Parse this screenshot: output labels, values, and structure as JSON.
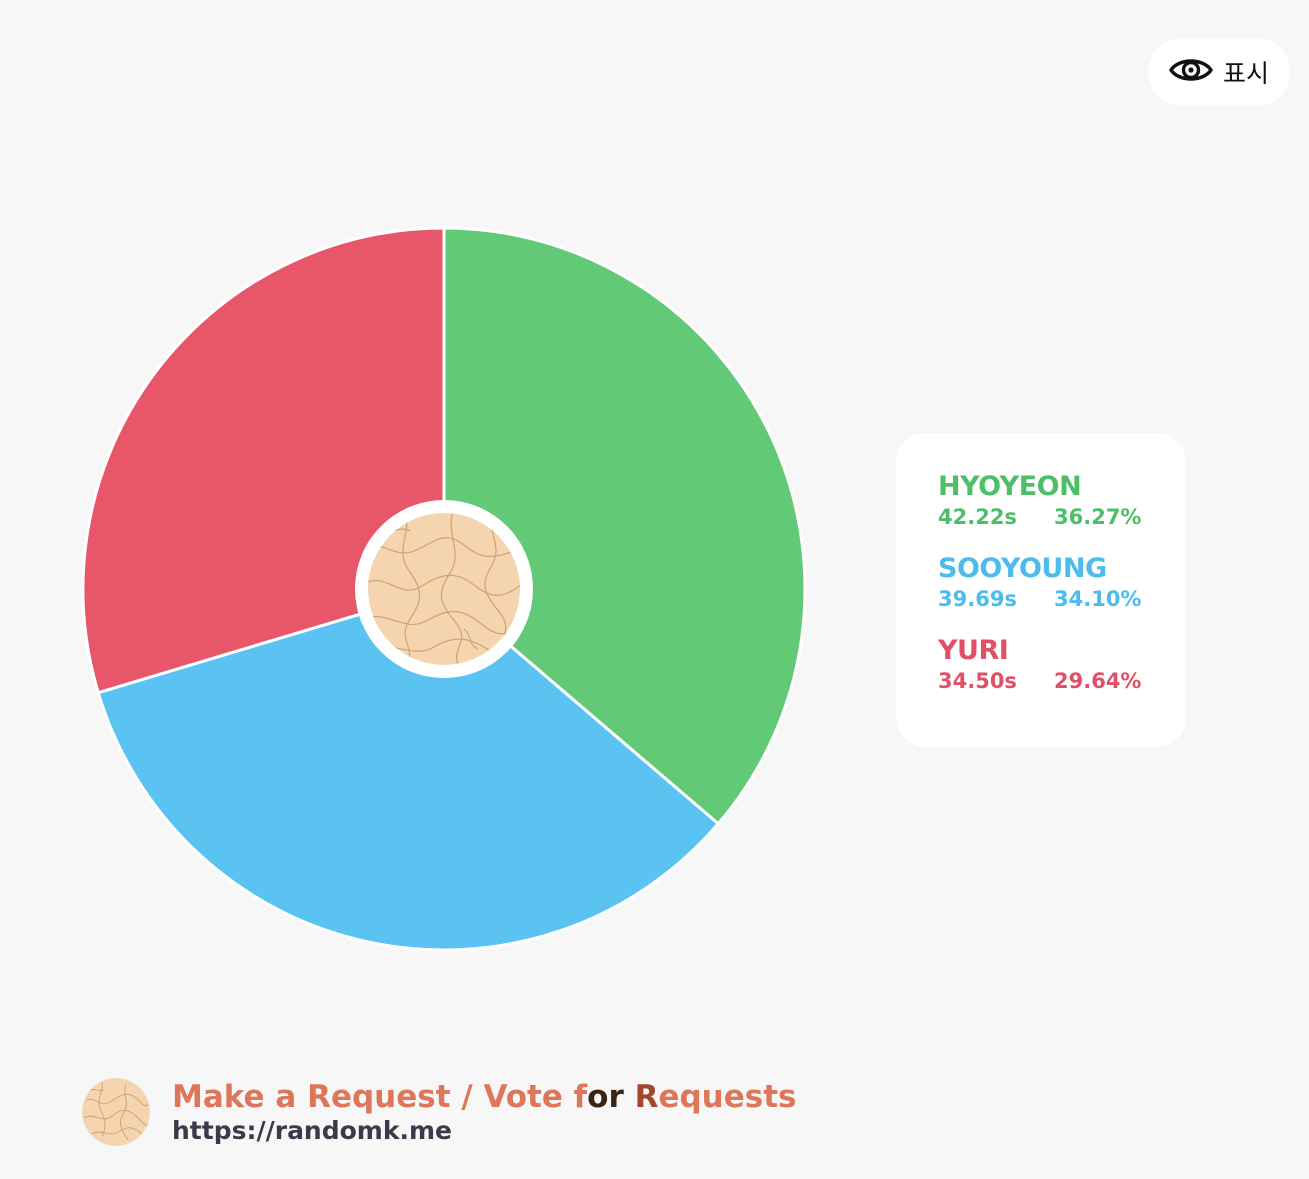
{
  "overlay": {
    "show_label": "표시",
    "icon": "eye-icon"
  },
  "chart_data": {
    "type": "pie",
    "style": "donut",
    "categories": [
      "HYOYEON",
      "SOOYOUNG",
      "YURI"
    ],
    "times": [
      "42.22s",
      "39.69s",
      "34.50s"
    ],
    "values": [
      42.22,
      39.69,
      34.5
    ],
    "percents": [
      "36.27%",
      "34.10%",
      "29.64%"
    ],
    "colors": [
      "#62c977",
      "#5ac3f2",
      "#e8566a"
    ],
    "start": "12 o'clock, clockwise",
    "legend_position": "right"
  },
  "legend": {
    "items": [
      {
        "name": "HYOYEON",
        "time": "42.22s",
        "percent": "36.27%",
        "color": "#4ebe69"
      },
      {
        "name": "SOOYOUNG",
        "time": "39.69s",
        "percent": "34.10%",
        "color": "#4bbcec"
      },
      {
        "name": "YURI",
        "time": "34.50s",
        "percent": "29.64%",
        "color": "#e05066"
      }
    ]
  },
  "footer": {
    "title_part1": "Make a Request / Vote f",
    "title_part2": "o",
    "title_part3": "r ",
    "title_part4": "R",
    "title_part5": "equests",
    "url": "https://randomk.me"
  },
  "theme": {
    "background": "#f8f7f8",
    "center_badge_fill": "#f5d5b0",
    "center_badge_lines": "#c98e5a"
  }
}
